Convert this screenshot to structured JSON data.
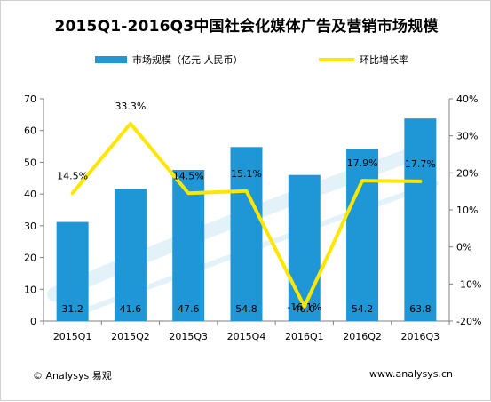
{
  "title": "2015Q1-2016Q3中国社会化媒体广告及营销市场规模",
  "footer": {
    "source": "© Analysys 易观",
    "website": "www.analysys.cn"
  },
  "colors": {
    "bar": "#1f97d6",
    "line": "#ffe600",
    "axis": "#808080",
    "text": "#000000"
  },
  "chart_data": {
    "type": "bar",
    "categories": [
      "2015Q1",
      "2015Q2",
      "2015Q3",
      "2015Q4",
      "2016Q1",
      "2016Q2",
      "2016Q3"
    ],
    "series": [
      {
        "name": "市场规模（亿元 人民币）",
        "type": "bar",
        "axis": "left",
        "values": [
          31.2,
          41.6,
          47.6,
          54.8,
          46.0,
          54.2,
          63.8
        ],
        "labels": [
          "31.2",
          "41.6",
          "47.6",
          "54.8",
          "46.0",
          "54.2",
          "63.8"
        ]
      },
      {
        "name": "环比增长率",
        "type": "line",
        "axis": "right",
        "values": [
          14.5,
          33.3,
          14.5,
          15.1,
          -16.1,
          17.9,
          17.7
        ],
        "labels": [
          "14.5%",
          "33.3%",
          "14.5%",
          "15.1%",
          "-16.1%",
          "17.9%",
          "17.7%"
        ]
      }
    ],
    "y_left": {
      "min": 0,
      "max": 70,
      "ticks": [
        0,
        10,
        20,
        30,
        40,
        50,
        60,
        70
      ],
      "tick_labels": [
        "0",
        "10",
        "20",
        "30",
        "40",
        "50",
        "60",
        "70"
      ]
    },
    "y_right": {
      "min": -20,
      "max": 40,
      "ticks": [
        -20,
        -10,
        0,
        10,
        20,
        30,
        40
      ],
      "tick_labels": [
        "-20%",
        "-10%",
        "0%",
        "10%",
        "20%",
        "30%",
        "40%"
      ]
    },
    "grid": false,
    "legend_position": "top"
  }
}
